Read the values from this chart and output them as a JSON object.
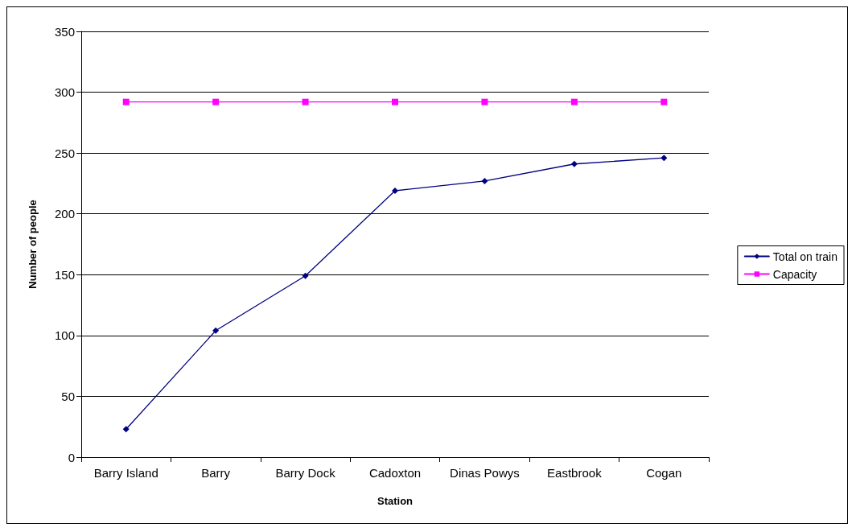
{
  "chart_data": {
    "type": "line",
    "xlabel": "Station",
    "ylabel": "Number of people",
    "categories": [
      "Barry Island",
      "Barry",
      "Barry Dock",
      "Cadoxton",
      "Dinas Powys",
      "Eastbrook",
      "Cogan"
    ],
    "series": [
      {
        "name": "Total on train",
        "color": "#000080",
        "marker": "diamond",
        "values": [
          23,
          104,
          149,
          219,
          227,
          241,
          246
        ]
      },
      {
        "name": "Capacity",
        "color": "#ff00ff",
        "marker": "square",
        "values": [
          292,
          292,
          292,
          292,
          292,
          292,
          292
        ]
      }
    ],
    "ylim": [
      0,
      350
    ],
    "yticks": [
      0,
      50,
      100,
      150,
      200,
      250,
      300,
      350
    ],
    "grid": "y",
    "legend": "right",
    "line_style": "solid"
  }
}
